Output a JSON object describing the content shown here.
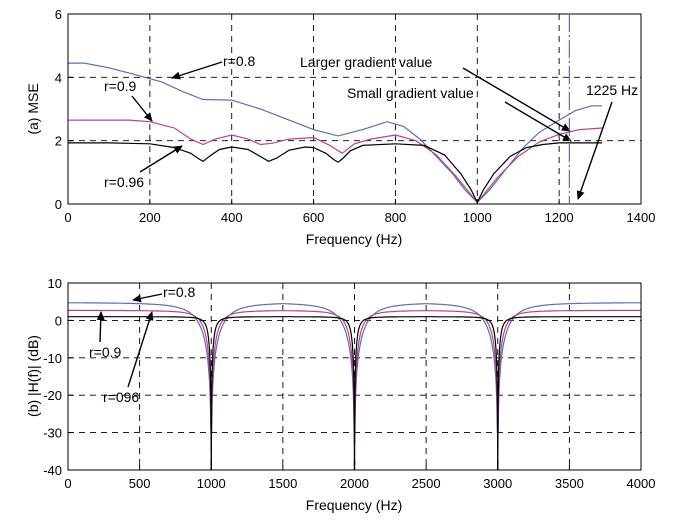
{
  "chart_data": [
    {
      "type": "line",
      "xlabel": "Frequency (Hz)",
      "ylabel": "(a) MSE",
      "xlim": [
        0,
        1400
      ],
      "ylim": [
        0,
        6
      ],
      "xticks": [
        0,
        200,
        400,
        600,
        800,
        1000,
        1200,
        1400
      ],
      "yticks": [
        0,
        2,
        4,
        6
      ],
      "grid": true,
      "series": [
        {
          "name": "r=0.8",
          "color": "#5a6fb4",
          "x": [
            0,
            40,
            100,
            160,
            230,
            280,
            330,
            400,
            470,
            540,
            600,
            660,
            720,
            780,
            820,
            860,
            900,
            940,
            970,
            1000,
            1030,
            1070,
            1110,
            1150,
            1200,
            1240,
            1280,
            1305
          ],
          "y": [
            4.45,
            4.45,
            4.3,
            4.1,
            3.85,
            3.55,
            3.3,
            3.28,
            3.0,
            2.65,
            2.35,
            2.15,
            2.35,
            2.6,
            2.45,
            2.05,
            1.5,
            0.95,
            0.45,
            0.05,
            0.45,
            1.1,
            1.75,
            2.25,
            2.65,
            2.95,
            3.1,
            3.1
          ]
        },
        {
          "name": "r=0.9",
          "color": "#c0408a",
          "x": [
            0,
            150,
            200,
            260,
            300,
            330,
            360,
            400,
            440,
            470,
            500,
            540,
            600,
            640,
            670,
            700,
            740,
            800,
            850,
            900,
            950,
            1000,
            1050,
            1100,
            1150,
            1200,
            1250,
            1305
          ],
          "y": [
            2.65,
            2.65,
            2.6,
            2.4,
            2.05,
            1.88,
            2.05,
            2.18,
            2.05,
            1.88,
            1.92,
            2.05,
            2.1,
            1.85,
            1.6,
            1.9,
            2.05,
            2.18,
            2.0,
            1.55,
            0.85,
            0.05,
            0.85,
            1.5,
            1.95,
            2.2,
            2.35,
            2.4
          ]
        },
        {
          "name": "r=0.96",
          "color": "#000000",
          "x": [
            0,
            100,
            200,
            260,
            300,
            320,
            330,
            345,
            370,
            400,
            440,
            470,
            490,
            510,
            540,
            580,
            600,
            630,
            650,
            660,
            670,
            690,
            720,
            800,
            870,
            920,
            960,
            985,
            1000,
            1015,
            1040,
            1080,
            1120,
            1160,
            1200,
            1250,
            1305
          ],
          "y": [
            1.93,
            1.93,
            1.9,
            1.78,
            1.6,
            1.42,
            1.35,
            1.5,
            1.72,
            1.8,
            1.72,
            1.5,
            1.35,
            1.45,
            1.7,
            1.8,
            1.78,
            1.6,
            1.4,
            1.32,
            1.42,
            1.68,
            1.85,
            1.9,
            1.85,
            1.55,
            0.95,
            0.45,
            0.05,
            0.45,
            0.95,
            1.5,
            1.78,
            1.88,
            1.93,
            1.93,
            1.93
          ]
        }
      ],
      "annotations": {
        "label_r08": "r=0.8",
        "label_r09": "r=0.9",
        "label_r096": "r=0.96",
        "larger_gradient": "Larger gradient value",
        "small_gradient": "Small gradient value",
        "freq_1225": "1225 Hz"
      },
      "marker_line_x": 1225
    },
    {
      "type": "line",
      "xlabel": "Frequency (Hz)",
      "ylabel": "(b) |H(f)| (dB)",
      "xlim": [
        0,
        4000
      ],
      "ylim": [
        -40,
        10
      ],
      "xticks": [
        0,
        500,
        1000,
        1500,
        2000,
        2500,
        3000,
        3500,
        4000
      ],
      "yticks": [
        -40,
        -30,
        -20,
        -10,
        0,
        10
      ],
      "grid": true,
      "notches": [
        1000,
        2000,
        3000
      ],
      "series": [
        {
          "name": "r=0.8",
          "color": "#5a6fb4",
          "passband_db": 4.8,
          "dip_db": -30,
          "width_hz": 140
        },
        {
          "name": "r=0.9",
          "color": "#c0408a",
          "passband_db": 2.7,
          "dip_db": -33,
          "width_hz": 75
        },
        {
          "name": "r=096",
          "color": "#000000",
          "passband_db": 1.0,
          "dip_db": -40,
          "width_hz": 32
        }
      ],
      "annotations": {
        "label_r08": "r=0.8",
        "label_r09": "r=0.9",
        "label_r096": "r=096"
      }
    }
  ]
}
